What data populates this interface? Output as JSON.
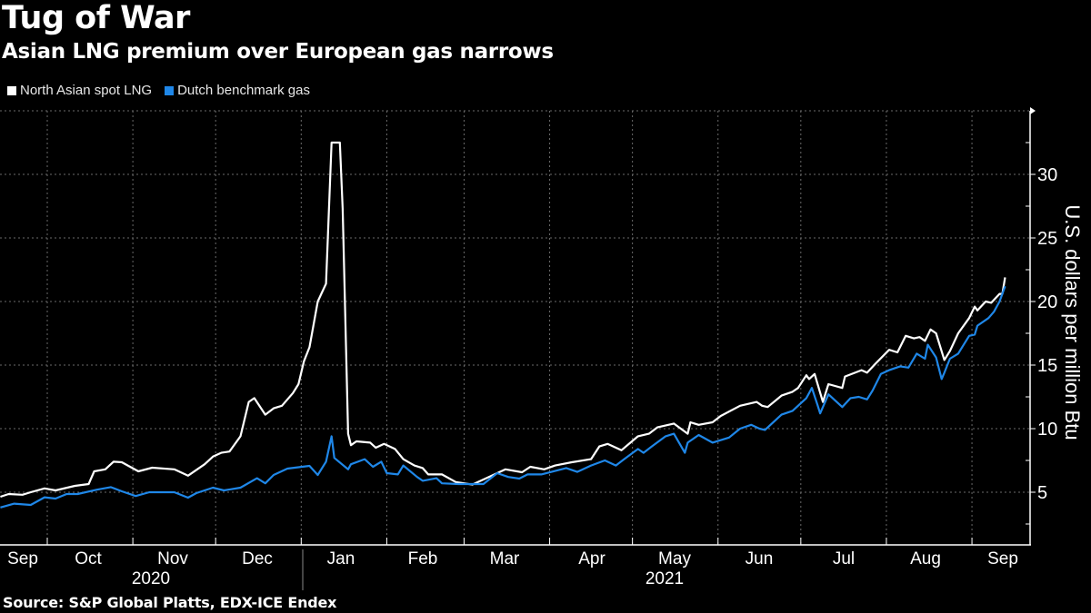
{
  "title": "Tug of War",
  "subtitle": "Asian LNG premium over European gas narrows",
  "source": "Source: S&P Global Platts, EDX-ICE Endex",
  "chart_data": {
    "type": "line",
    "title": "Tug of War",
    "subtitle": "Asian LNG premium over European gas narrows",
    "ylabel": "U.S. dollars per million Btu",
    "ylim": [
      0.85,
      34.9
    ],
    "y_ticks": [
      5,
      10,
      15,
      20,
      25,
      30
    ],
    "x_tick_labels": [
      "Sep",
      "Oct",
      "Nov",
      "Dec",
      "Jan",
      "Feb",
      "Mar",
      "Apr",
      "May",
      "Jun",
      "Jul",
      "Aug",
      "Sep"
    ],
    "year_labels": [
      "2020",
      "2021"
    ],
    "grid": true,
    "legend_position": "top-left",
    "series": [
      {
        "name": "North Asian spot LNG",
        "color": "#ffffff",
        "points": [
          [
            "2020-09-14",
            4.64
          ],
          [
            "2020-09-17",
            4.86
          ],
          [
            "2020-09-22",
            4.8
          ],
          [
            "2020-09-25",
            5.0
          ],
          [
            "2020-09-30",
            5.3
          ],
          [
            "2020-10-04",
            5.14
          ],
          [
            "2020-10-11",
            5.5
          ],
          [
            "2020-10-16",
            5.64
          ],
          [
            "2020-10-18",
            6.64
          ],
          [
            "2020-10-22",
            6.8
          ],
          [
            "2020-10-25",
            7.4
          ],
          [
            "2020-10-28",
            7.36
          ],
          [
            "2020-11-03",
            6.64
          ],
          [
            "2020-11-08",
            6.93
          ],
          [
            "2020-11-16",
            6.8
          ],
          [
            "2020-11-21",
            6.3
          ],
          [
            "2020-11-27",
            7.2
          ],
          [
            "2020-11-30",
            7.8
          ],
          [
            "2020-12-03",
            8.1
          ],
          [
            "2020-12-06",
            8.2
          ],
          [
            "2020-12-10",
            9.4
          ],
          [
            "2020-12-13",
            12.1
          ],
          [
            "2020-12-15",
            12.4
          ],
          [
            "2020-12-19",
            11.1
          ],
          [
            "2020-12-22",
            11.6
          ],
          [
            "2020-12-25",
            11.8
          ],
          [
            "2020-12-29",
            12.8
          ],
          [
            "2020-12-31",
            13.5
          ],
          [
            "2021-01-02",
            15.3
          ],
          [
            "2021-01-04",
            16.4
          ],
          [
            "2021-01-07",
            20.0
          ],
          [
            "2021-01-10",
            21.4
          ],
          [
            "2021-01-12",
            32.5
          ],
          [
            "2021-01-15",
            32.5
          ],
          [
            "2021-01-16",
            27.3
          ],
          [
            "2021-01-18",
            9.6
          ],
          [
            "2021-01-19",
            8.7
          ],
          [
            "2021-01-21",
            9.0
          ],
          [
            "2021-01-26",
            8.9
          ],
          [
            "2021-01-28",
            8.5
          ],
          [
            "2021-01-31",
            8.8
          ],
          [
            "2021-02-04",
            8.4
          ],
          [
            "2021-02-07",
            7.6
          ],
          [
            "2021-02-11",
            7.1
          ],
          [
            "2021-02-14",
            6.9
          ],
          [
            "2021-02-16",
            6.4
          ],
          [
            "2021-02-21",
            6.4
          ],
          [
            "2021-02-26",
            5.8
          ],
          [
            "2021-03-04",
            5.6
          ],
          [
            "2021-03-09",
            6.1
          ],
          [
            "2021-03-16",
            6.8
          ],
          [
            "2021-03-22",
            6.57
          ],
          [
            "2021-03-25",
            7.0
          ],
          [
            "2021-03-30",
            6.8
          ],
          [
            "2021-04-03",
            7.1
          ],
          [
            "2021-04-09",
            7.36
          ],
          [
            "2021-04-16",
            7.6
          ],
          [
            "2021-04-19",
            8.6
          ],
          [
            "2021-04-22",
            8.8
          ],
          [
            "2021-04-27",
            8.3
          ],
          [
            "2021-05-03",
            9.4
          ],
          [
            "2021-05-07",
            9.6
          ],
          [
            "2021-05-10",
            10.1
          ],
          [
            "2021-05-16",
            10.4
          ],
          [
            "2021-05-21",
            9.6
          ],
          [
            "2021-05-22",
            10.5
          ],
          [
            "2021-05-25",
            10.3
          ],
          [
            "2021-05-30",
            10.5
          ],
          [
            "2021-06-02",
            11.0
          ],
          [
            "2021-06-09",
            11.8
          ],
          [
            "2021-06-15",
            12.1
          ],
          [
            "2021-06-17",
            11.8
          ],
          [
            "2021-06-19",
            11.7
          ],
          [
            "2021-06-24",
            12.6
          ],
          [
            "2021-06-28",
            12.9
          ],
          [
            "2021-06-30",
            13.2
          ],
          [
            "2021-07-03",
            14.2
          ],
          [
            "2021-07-04",
            13.9
          ],
          [
            "2021-07-06",
            14.3
          ],
          [
            "2021-07-09",
            12.1
          ],
          [
            "2021-07-11",
            13.5
          ],
          [
            "2021-07-16",
            13.2
          ],
          [
            "2021-07-17",
            14.1
          ],
          [
            "2021-07-23",
            14.6
          ],
          [
            "2021-07-25",
            14.4
          ],
          [
            "2021-07-28",
            15.1
          ],
          [
            "2021-08-02",
            16.2
          ],
          [
            "2021-08-05",
            16.0
          ],
          [
            "2021-08-08",
            17.3
          ],
          [
            "2021-08-11",
            17.1
          ],
          [
            "2021-08-13",
            17.2
          ],
          [
            "2021-08-15",
            16.9
          ],
          [
            "2021-08-17",
            17.8
          ],
          [
            "2021-08-19",
            17.5
          ],
          [
            "2021-08-22",
            15.4
          ],
          [
            "2021-08-24",
            16.1
          ],
          [
            "2021-08-27",
            17.5
          ],
          [
            "2021-08-31",
            18.7
          ],
          [
            "2021-09-02",
            19.6
          ],
          [
            "2021-09-03",
            19.3
          ],
          [
            "2021-09-06",
            20.0
          ],
          [
            "2021-09-08",
            19.9
          ],
          [
            "2021-09-11",
            20.6
          ],
          [
            "2021-09-12",
            20.6
          ],
          [
            "2021-09-13",
            21.9
          ]
        ]
      },
      {
        "name": "Dutch benchmark gas",
        "color": "#1f87e8",
        "points": [
          [
            "2020-09-14",
            3.8
          ],
          [
            "2020-09-19",
            4.1
          ],
          [
            "2020-09-25",
            4.0
          ],
          [
            "2020-09-30",
            4.6
          ],
          [
            "2020-10-04",
            4.5
          ],
          [
            "2020-10-08",
            4.86
          ],
          [
            "2020-10-12",
            4.86
          ],
          [
            "2020-10-19",
            5.2
          ],
          [
            "2020-10-24",
            5.4
          ],
          [
            "2020-10-28",
            5.07
          ],
          [
            "2020-11-02",
            4.7
          ],
          [
            "2020-11-07",
            5.0
          ],
          [
            "2020-11-16",
            5.0
          ],
          [
            "2020-11-21",
            4.57
          ],
          [
            "2020-11-24",
            4.93
          ],
          [
            "2020-11-30",
            5.36
          ],
          [
            "2020-12-04",
            5.14
          ],
          [
            "2020-12-10",
            5.36
          ],
          [
            "2020-12-16",
            6.1
          ],
          [
            "2020-12-19",
            5.7
          ],
          [
            "2020-12-22",
            6.36
          ],
          [
            "2020-12-27",
            6.86
          ],
          [
            "2021-01-04",
            7.07
          ],
          [
            "2021-01-07",
            6.36
          ],
          [
            "2021-01-10",
            7.4
          ],
          [
            "2021-01-12",
            9.4
          ],
          [
            "2021-01-13",
            7.7
          ],
          [
            "2021-01-18",
            6.8
          ],
          [
            "2021-01-19",
            7.2
          ],
          [
            "2021-01-24",
            7.6
          ],
          [
            "2021-01-27",
            7.0
          ],
          [
            "2021-01-30",
            7.4
          ],
          [
            "2021-02-01",
            6.5
          ],
          [
            "2021-02-05",
            6.4
          ],
          [
            "2021-02-07",
            7.1
          ],
          [
            "2021-02-12",
            6.2
          ],
          [
            "2021-02-14",
            5.9
          ],
          [
            "2021-02-19",
            6.1
          ],
          [
            "2021-02-21",
            5.7
          ],
          [
            "2021-02-27",
            5.64
          ],
          [
            "2021-03-08",
            5.64
          ],
          [
            "2021-03-13",
            6.5
          ],
          [
            "2021-03-17",
            6.2
          ],
          [
            "2021-03-21",
            6.07
          ],
          [
            "2021-03-24",
            6.4
          ],
          [
            "2021-03-29",
            6.4
          ],
          [
            "2021-04-07",
            6.9
          ],
          [
            "2021-04-11",
            6.6
          ],
          [
            "2021-04-16",
            7.1
          ],
          [
            "2021-04-21",
            7.5
          ],
          [
            "2021-04-25",
            7.1
          ],
          [
            "2021-04-28",
            7.6
          ],
          [
            "2021-05-03",
            8.4
          ],
          [
            "2021-05-05",
            8.1
          ],
          [
            "2021-05-08",
            8.6
          ],
          [
            "2021-05-13",
            9.4
          ],
          [
            "2021-05-16",
            9.6
          ],
          [
            "2021-05-20",
            8.1
          ],
          [
            "2021-05-21",
            8.9
          ],
          [
            "2021-05-25",
            9.5
          ],
          [
            "2021-05-30",
            8.9
          ],
          [
            "2021-06-05",
            9.3
          ],
          [
            "2021-06-09",
            10.0
          ],
          [
            "2021-06-13",
            10.3
          ],
          [
            "2021-06-16",
            10.0
          ],
          [
            "2021-06-18",
            9.9
          ],
          [
            "2021-06-24",
            11.1
          ],
          [
            "2021-06-28",
            11.4
          ],
          [
            "2021-07-03",
            12.4
          ],
          [
            "2021-07-05",
            13.2
          ],
          [
            "2021-07-07",
            11.9
          ],
          [
            "2021-07-08",
            11.2
          ],
          [
            "2021-07-11",
            12.7
          ],
          [
            "2021-07-14",
            12.1
          ],
          [
            "2021-07-16",
            11.7
          ],
          [
            "2021-07-19",
            12.4
          ],
          [
            "2021-07-22",
            12.5
          ],
          [
            "2021-07-25",
            12.3
          ],
          [
            "2021-07-27",
            13.0
          ],
          [
            "2021-07-30",
            14.3
          ],
          [
            "2021-08-02",
            14.6
          ],
          [
            "2021-08-06",
            14.9
          ],
          [
            "2021-08-09",
            14.8
          ],
          [
            "2021-08-12",
            15.9
          ],
          [
            "2021-08-15",
            15.5
          ],
          [
            "2021-08-16",
            16.6
          ],
          [
            "2021-08-19",
            15.6
          ],
          [
            "2021-08-21",
            13.9
          ],
          [
            "2021-08-22",
            14.4
          ],
          [
            "2021-08-24",
            15.5
          ],
          [
            "2021-08-27",
            15.9
          ],
          [
            "2021-08-31",
            17.3
          ],
          [
            "2021-09-02",
            17.4
          ],
          [
            "2021-09-03",
            18.1
          ],
          [
            "2021-09-07",
            18.7
          ],
          [
            "2021-09-09",
            19.2
          ],
          [
            "2021-09-11",
            20.0
          ],
          [
            "2021-09-13",
            21.2
          ]
        ]
      }
    ]
  }
}
